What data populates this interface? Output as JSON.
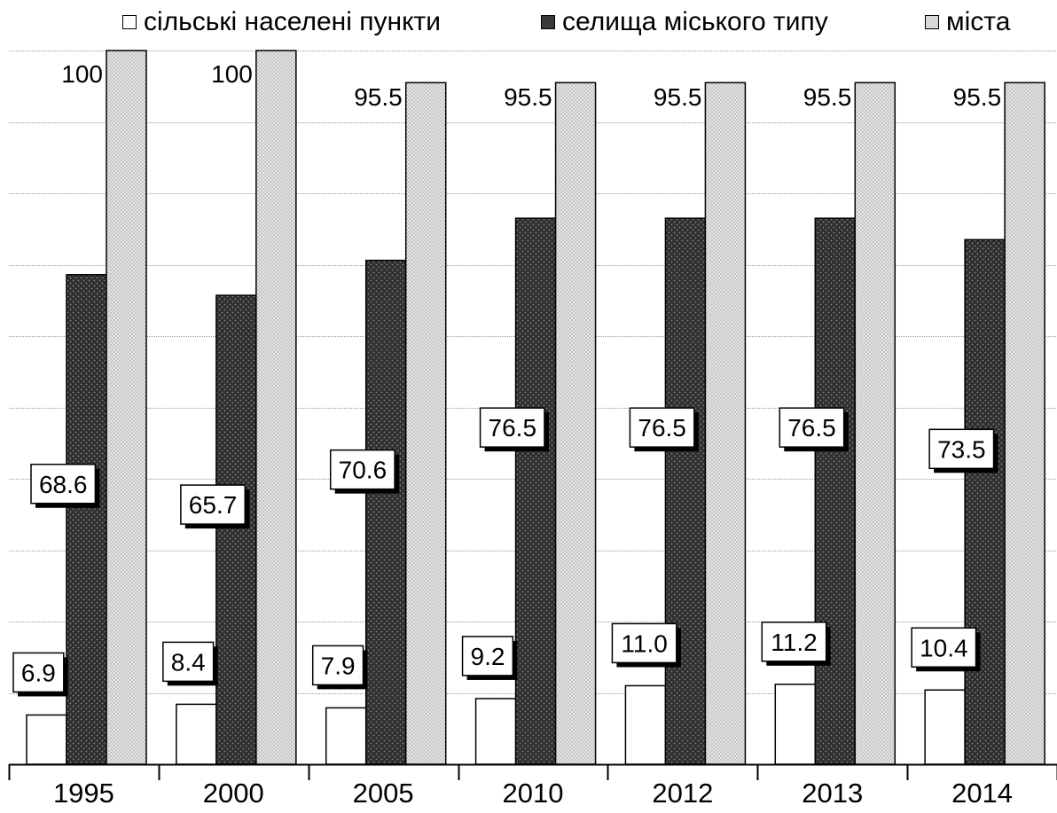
{
  "chart_data": {
    "type": "bar",
    "categories": [
      "1995",
      "2000",
      "2005",
      "2010",
      "2012",
      "2013",
      "2014"
    ],
    "series": [
      {
        "name": "сільські населені пункти",
        "values": [
          6.9,
          8.4,
          7.9,
          9.2,
          11.0,
          11.2,
          10.4
        ],
        "labels": [
          "6.9",
          "8.4",
          "7.9",
          "9.2",
          "11.0",
          "11.2",
          "10.4"
        ]
      },
      {
        "name": "селища міського типу",
        "values": [
          68.6,
          65.7,
          70.6,
          76.5,
          76.5,
          76.5,
          73.5
        ],
        "labels": [
          "68.6",
          "65.7",
          "70.6",
          "76.5",
          "76.5",
          "76.5",
          "73.5"
        ]
      },
      {
        "name": "міста",
        "values": [
          100,
          100,
          95.5,
          95.5,
          95.5,
          95.5,
          95.5
        ],
        "labels": [
          "100",
          "100",
          "95.5",
          "95.5",
          "95.5",
          "95.5",
          "95.5"
        ]
      }
    ],
    "ylim": [
      0,
      100
    ],
    "grid": true,
    "legend_position": "top",
    "colors": {
      "rural": "#ffffff",
      "town": "#3a3a3a",
      "city": "#d8d8d8"
    }
  }
}
